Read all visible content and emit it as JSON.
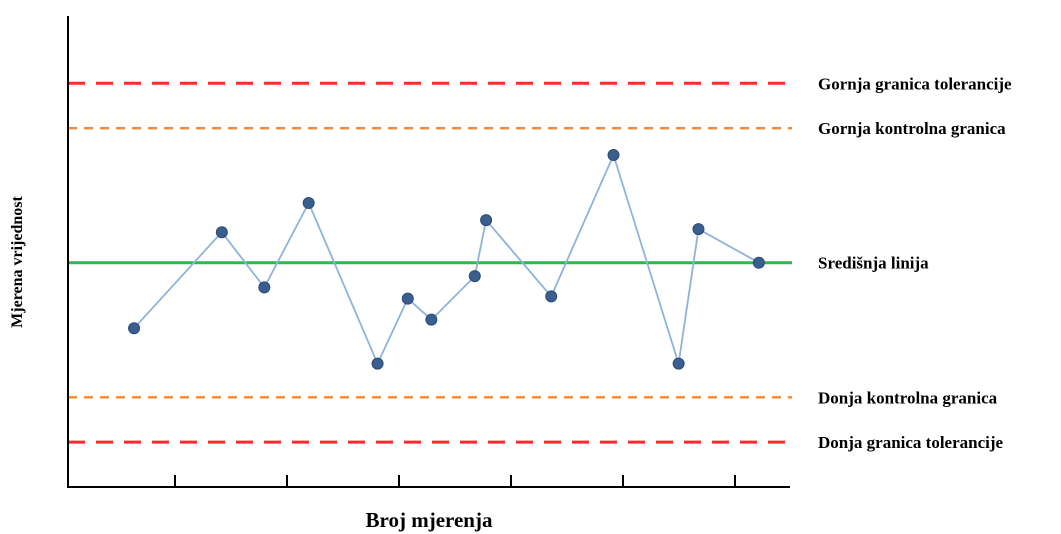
{
  "chart_data": {
    "type": "line",
    "xlabel": "Broj mjerenja",
    "ylabel": "Mjerena vrijednost",
    "x_tick_count": 6,
    "grid": false,
    "points": [
      {
        "x": 0.7,
        "y": -1.46
      },
      {
        "x": 1.63,
        "y": 0.68
      },
      {
        "x": 2.08,
        "y": -0.55
      },
      {
        "x": 2.55,
        "y": 1.33
      },
      {
        "x": 3.28,
        "y": -2.25
      },
      {
        "x": 3.6,
        "y": -0.8
      },
      {
        "x": 3.85,
        "y": -1.27
      },
      {
        "x": 4.31,
        "y": -0.3
      },
      {
        "x": 4.43,
        "y": 0.95
      },
      {
        "x": 5.12,
        "y": -0.75
      },
      {
        "x": 5.78,
        "y": 2.4
      },
      {
        "x": 6.47,
        "y": -2.25
      },
      {
        "x": 6.68,
        "y": 0.75
      },
      {
        "x": 7.32,
        "y": 0.0
      }
    ],
    "xlim": [
      0.0,
      7.65
    ],
    "ylim": [
      -5.0,
      5.5
    ],
    "reference_lines": [
      {
        "label": "Gornja granica tolerancije",
        "y": 4.0,
        "color": "#ff2a2a",
        "style": "dashed-long"
      },
      {
        "label": "Gornja kontrolna granica",
        "y": 3.0,
        "color": "#f08a30",
        "style": "dashed-short"
      },
      {
        "label": "Središnja linija",
        "y": 0.0,
        "color": "#2db84d",
        "style": "solid"
      },
      {
        "label": "Donja kontrolna granica",
        "y": -3.0,
        "color": "#f08a30",
        "style": "dashed-short"
      },
      {
        "label": "Donja granica tolerancije",
        "y": -4.0,
        "color": "#ff2a2a",
        "style": "dashed-long"
      }
    ],
    "series_line_color": "#8fb3d9",
    "marker_color": "#3a5f8f"
  }
}
